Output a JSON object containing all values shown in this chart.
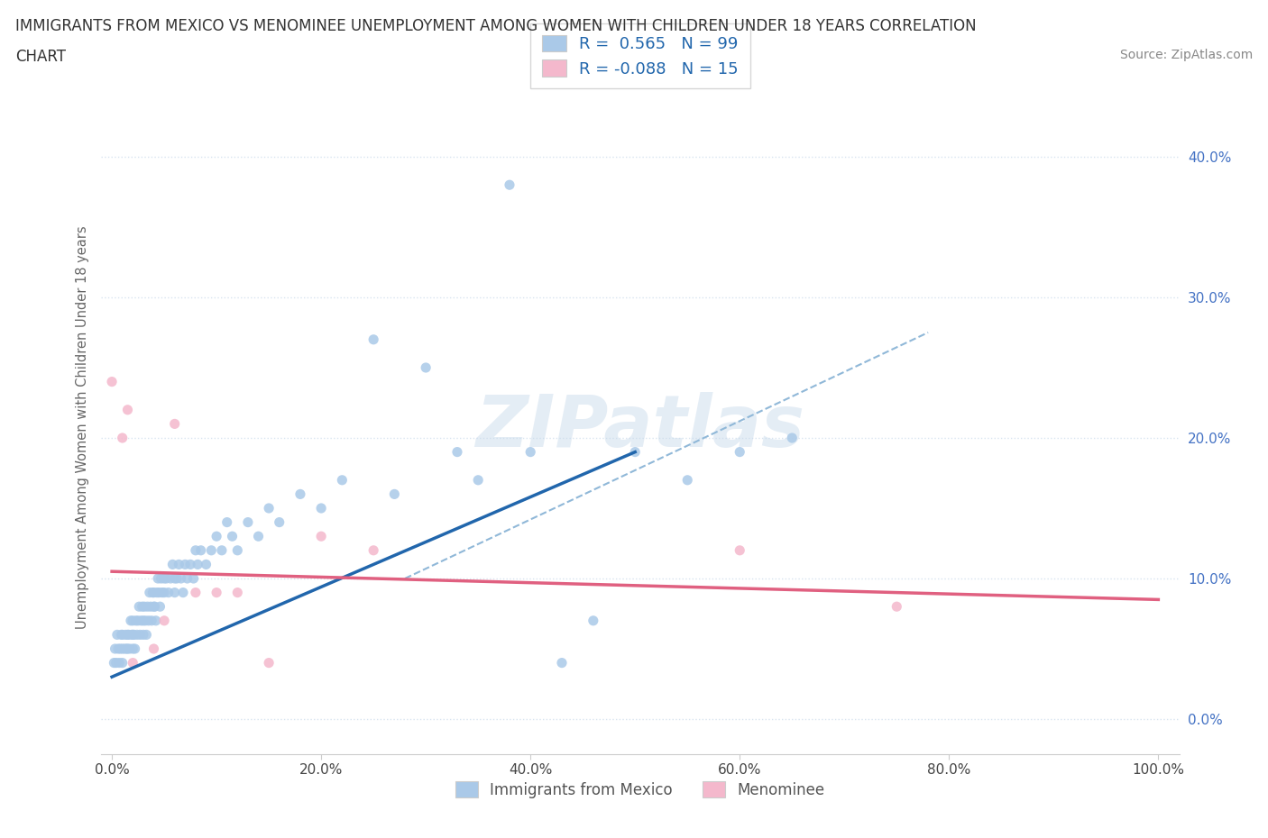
{
  "title_line1": "IMMIGRANTS FROM MEXICO VS MENOMINEE UNEMPLOYMENT AMONG WOMEN WITH CHILDREN UNDER 18 YEARS CORRELATION",
  "title_line2": "CHART",
  "source": "Source: ZipAtlas.com",
  "ylabel": "Unemployment Among Women with Children Under 18 years",
  "legend1_label": "Immigrants from Mexico",
  "legend2_label": "Menominee",
  "R1_label": "R =  0.565",
  "N1_label": "N = 99",
  "R2_label": "R = -0.088",
  "N2_label": "N = 15",
  "blue_scatter_color": "#aac9e8",
  "pink_scatter_color": "#f4b8cc",
  "blue_line_color": "#2166ac",
  "pink_line_color": "#e06080",
  "dashed_line_color": "#90b8d8",
  "watermark": "ZIPatlas",
  "ytick_color": "#4472c4",
  "grid_color": "#d8e4f0",
  "blue_scatter_x": [
    0.002,
    0.003,
    0.004,
    0.005,
    0.006,
    0.007,
    0.008,
    0.009,
    0.01,
    0.01,
    0.01,
    0.012,
    0.013,
    0.014,
    0.015,
    0.015,
    0.016,
    0.017,
    0.018,
    0.019,
    0.02,
    0.02,
    0.02,
    0.021,
    0.022,
    0.023,
    0.024,
    0.025,
    0.026,
    0.027,
    0.028,
    0.029,
    0.03,
    0.03,
    0.031,
    0.032,
    0.033,
    0.034,
    0.035,
    0.036,
    0.037,
    0.038,
    0.039,
    0.04,
    0.04,
    0.041,
    0.042,
    0.043,
    0.044,
    0.045,
    0.046,
    0.047,
    0.048,
    0.05,
    0.05,
    0.052,
    0.054,
    0.056,
    0.058,
    0.06,
    0.06,
    0.062,
    0.064,
    0.066,
    0.068,
    0.07,
    0.072,
    0.075,
    0.078,
    0.08,
    0.082,
    0.085,
    0.09,
    0.095,
    0.1,
    0.105,
    0.11,
    0.115,
    0.12,
    0.13,
    0.14,
    0.15,
    0.16,
    0.18,
    0.2,
    0.22,
    0.25,
    0.27,
    0.3,
    0.33,
    0.35,
    0.38,
    0.4,
    0.43,
    0.46,
    0.5,
    0.55,
    0.6,
    0.65
  ],
  "blue_scatter_y": [
    0.04,
    0.05,
    0.04,
    0.06,
    0.05,
    0.04,
    0.05,
    0.06,
    0.05,
    0.06,
    0.04,
    0.05,
    0.06,
    0.05,
    0.06,
    0.05,
    0.06,
    0.05,
    0.07,
    0.06,
    0.05,
    0.06,
    0.07,
    0.06,
    0.05,
    0.07,
    0.06,
    0.07,
    0.08,
    0.06,
    0.07,
    0.08,
    0.06,
    0.07,
    0.08,
    0.07,
    0.06,
    0.08,
    0.07,
    0.09,
    0.08,
    0.07,
    0.09,
    0.08,
    0.09,
    0.08,
    0.07,
    0.09,
    0.1,
    0.09,
    0.08,
    0.1,
    0.09,
    0.1,
    0.09,
    0.1,
    0.09,
    0.1,
    0.11,
    0.1,
    0.09,
    0.1,
    0.11,
    0.1,
    0.09,
    0.11,
    0.1,
    0.11,
    0.1,
    0.12,
    0.11,
    0.12,
    0.11,
    0.12,
    0.13,
    0.12,
    0.14,
    0.13,
    0.12,
    0.14,
    0.13,
    0.15,
    0.14,
    0.16,
    0.15,
    0.17,
    0.27,
    0.16,
    0.25,
    0.19,
    0.17,
    0.38,
    0.19,
    0.04,
    0.07,
    0.19,
    0.17,
    0.19,
    0.2
  ],
  "pink_scatter_x": [
    0.0,
    0.01,
    0.015,
    0.02,
    0.04,
    0.05,
    0.06,
    0.08,
    0.1,
    0.12,
    0.15,
    0.2,
    0.25,
    0.6,
    0.75
  ],
  "pink_scatter_y": [
    0.24,
    0.2,
    0.22,
    0.04,
    0.05,
    0.07,
    0.21,
    0.09,
    0.09,
    0.09,
    0.04,
    0.13,
    0.12,
    0.12,
    0.08
  ],
  "blue_line_x0": 0.0,
  "blue_line_y0": 0.03,
  "blue_line_x1": 0.5,
  "blue_line_y1": 0.19,
  "pink_line_x0": 0.0,
  "pink_line_y0": 0.105,
  "pink_line_x1": 1.0,
  "pink_line_y1": 0.085,
  "dashed_line_x0": 0.28,
  "dashed_line_y0": 0.1,
  "dashed_line_x1": 0.78,
  "dashed_line_y1": 0.275,
  "xlim_min": -0.01,
  "xlim_max": 1.02,
  "ylim_min": -0.025,
  "ylim_max": 0.44,
  "xticks": [
    0.0,
    0.2,
    0.4,
    0.6,
    0.8,
    1.0
  ],
  "yticks": [
    0.0,
    0.1,
    0.2,
    0.3,
    0.4
  ]
}
